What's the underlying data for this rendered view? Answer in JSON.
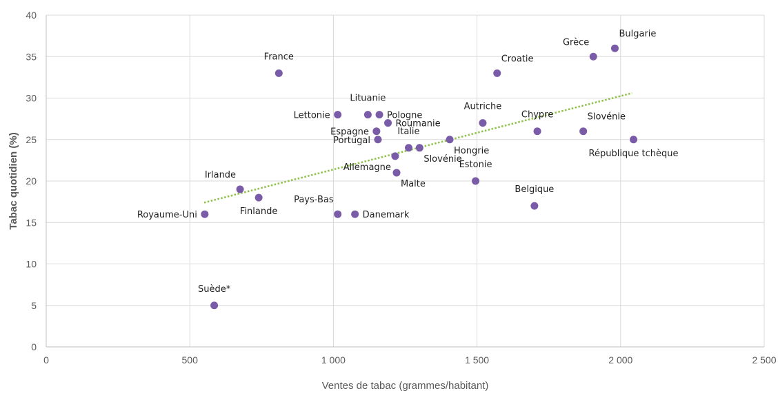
{
  "chart_data": {
    "type": "scatter",
    "xlabel": "Ventes de tabac (grammes/habitant)",
    "ylabel": "Tabac quotidien (%)",
    "xlim": [
      0,
      2500
    ],
    "ylim": [
      0,
      40
    ],
    "x_ticks": [
      0,
      500,
      1000,
      1500,
      2000,
      2500
    ],
    "x_tick_labels": [
      "0",
      "500",
      "1 000",
      "1 500",
      "2 000",
      "2 500"
    ],
    "y_ticks": [
      0,
      5,
      10,
      15,
      20,
      25,
      30,
      35,
      40
    ],
    "y_tick_labels": [
      "0",
      "5",
      "10",
      "15",
      "20",
      "25",
      "30",
      "35",
      "40"
    ],
    "grid": true,
    "point_color": "#7a5ba8",
    "trendline": {
      "type": "linear",
      "x": [
        550,
        2040
      ],
      "y": [
        17.4,
        30.6
      ],
      "color": "#8fc24a",
      "style": "dotted"
    },
    "points": [
      {
        "label": "France",
        "x": 810,
        "y": 33,
        "label_pos": "above"
      },
      {
        "label": "Croatie",
        "x": 1570,
        "y": 33,
        "label_pos": "above-right"
      },
      {
        "label": "Grèce",
        "x": 1905,
        "y": 35,
        "label_pos": "above-left"
      },
      {
        "label": "Bulgarie",
        "x": 1980,
        "y": 36,
        "label_pos": "above-right"
      },
      {
        "label": "Lettonie",
        "x": 1015,
        "y": 28,
        "label_pos": "left"
      },
      {
        "label": "Lituanie",
        "x": 1120,
        "y": 28,
        "label_pos": "above"
      },
      {
        "label": "Pologne",
        "x": 1160,
        "y": 28,
        "label_pos": "right"
      },
      {
        "label": "Roumanie",
        "x": 1190,
        "y": 27,
        "label_pos": "right"
      },
      {
        "label": "Autriche",
        "x": 1520,
        "y": 27,
        "label_pos": "above"
      },
      {
        "label": "Chypre",
        "x": 1710,
        "y": 26,
        "label_pos": "above"
      },
      {
        "label": "Slovénie",
        "x": 1870,
        "y": 26,
        "label_pos": "above-right"
      },
      {
        "label": "Espagne",
        "x": 1150,
        "y": 26,
        "label_pos": "left"
      },
      {
        "label": "Portugal",
        "x": 1155,
        "y": 25,
        "label_pos": "left"
      },
      {
        "label": "Italie",
        "x": 1262,
        "y": 24,
        "label_pos": "above"
      },
      {
        "label": "Slovénie",
        "x": 1300,
        "y": 24,
        "label_pos": "below-right"
      },
      {
        "label": "Hongrie",
        "x": 1405,
        "y": 25,
        "label_pos": "below-right"
      },
      {
        "label": "République tchèque",
        "x": 2045,
        "y": 25,
        "label_pos": "below"
      },
      {
        "label": "Allemagne",
        "x": 1215,
        "y": 23,
        "label_pos": "below-left"
      },
      {
        "label": "Malte",
        "x": 1220,
        "y": 21,
        "label_pos": "below-right"
      },
      {
        "label": "Estonie",
        "x": 1495,
        "y": 20,
        "label_pos": "above"
      },
      {
        "label": "Irlande",
        "x": 675,
        "y": 19,
        "label_pos": "above-left"
      },
      {
        "label": "Finlande",
        "x": 740,
        "y": 18,
        "label_pos": "below"
      },
      {
        "label": "Belgique",
        "x": 1700,
        "y": 17,
        "label_pos": "above"
      },
      {
        "label": "Royaume-Uni",
        "x": 552,
        "y": 16,
        "label_pos": "left"
      },
      {
        "label": "Pays-Bas",
        "x": 1015,
        "y": 16,
        "label_pos": "above-left"
      },
      {
        "label": "Danemark",
        "x": 1075,
        "y": 16,
        "label_pos": "right"
      },
      {
        "label": "Suède*",
        "x": 585,
        "y": 5,
        "label_pos": "above"
      }
    ]
  }
}
